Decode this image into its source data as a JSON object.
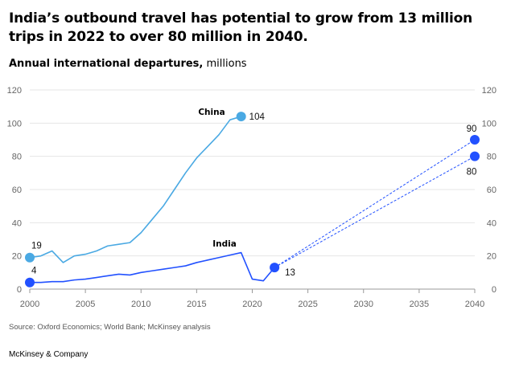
{
  "title": "India’s outbound travel has potential to grow from 13 million trips in 2022 to over 80 million in 2040.",
  "subtitle_bold": "Annual international departures,",
  "subtitle_unit": "millions",
  "source": "Source: Oxford Economics; World Bank; McKinsey analysis",
  "brand": "McKinsey & Company",
  "colors": {
    "china": "#4aa9e3",
    "india": "#2251ff",
    "grid": "#e6e6e6",
    "axis": "#999999"
  },
  "chart_data": {
    "type": "line",
    "xlim": [
      2000,
      2040
    ],
    "ylim": [
      0,
      120
    ],
    "x_ticks": [
      "2000",
      "2005",
      "2010",
      "2015",
      "2020",
      "2025",
      "2030",
      "2035",
      "2040"
    ],
    "y_ticks": [
      "0",
      "20",
      "40",
      "60",
      "80",
      "100",
      "120"
    ],
    "series": [
      {
        "name": "China",
        "key": "china",
        "x": [
          2000,
          2001,
          2002,
          2003,
          2004,
          2005,
          2006,
          2007,
          2008,
          2009,
          2010,
          2011,
          2012,
          2013,
          2014,
          2015,
          2016,
          2017,
          2018,
          2019
        ],
        "y": [
          19,
          20,
          23,
          16,
          20,
          21,
          23,
          26,
          27,
          28,
          34,
          42,
          50,
          60,
          70,
          79,
          86,
          93,
          102,
          104
        ],
        "markers": [
          {
            "x": 2000,
            "y": 19,
            "label": "19"
          },
          {
            "x": 2019,
            "y": 104,
            "label": "104"
          }
        ]
      },
      {
        "name": "India",
        "key": "india",
        "x": [
          2000,
          2001,
          2002,
          2003,
          2004,
          2005,
          2006,
          2007,
          2008,
          2009,
          2010,
          2011,
          2012,
          2013,
          2014,
          2015,
          2016,
          2017,
          2018,
          2019,
          2020,
          2021,
          2022
        ],
        "y": [
          4,
          4,
          4.5,
          4.5,
          5.5,
          6,
          7,
          8,
          9,
          8.5,
          10,
          11,
          12,
          13,
          14,
          16,
          17.5,
          19,
          20.5,
          22,
          6,
          5,
          13
        ],
        "markers": [
          {
            "x": 2000,
            "y": 4,
            "label": "4"
          },
          {
            "x": 2022,
            "y": 13,
            "label": "13"
          }
        ],
        "projections": [
          {
            "x": [
              2022,
              2040
            ],
            "y": [
              13,
              90
            ],
            "label": "90"
          },
          {
            "x": [
              2022,
              2040
            ],
            "y": [
              13,
              80
            ],
            "label": "80"
          }
        ]
      }
    ]
  }
}
